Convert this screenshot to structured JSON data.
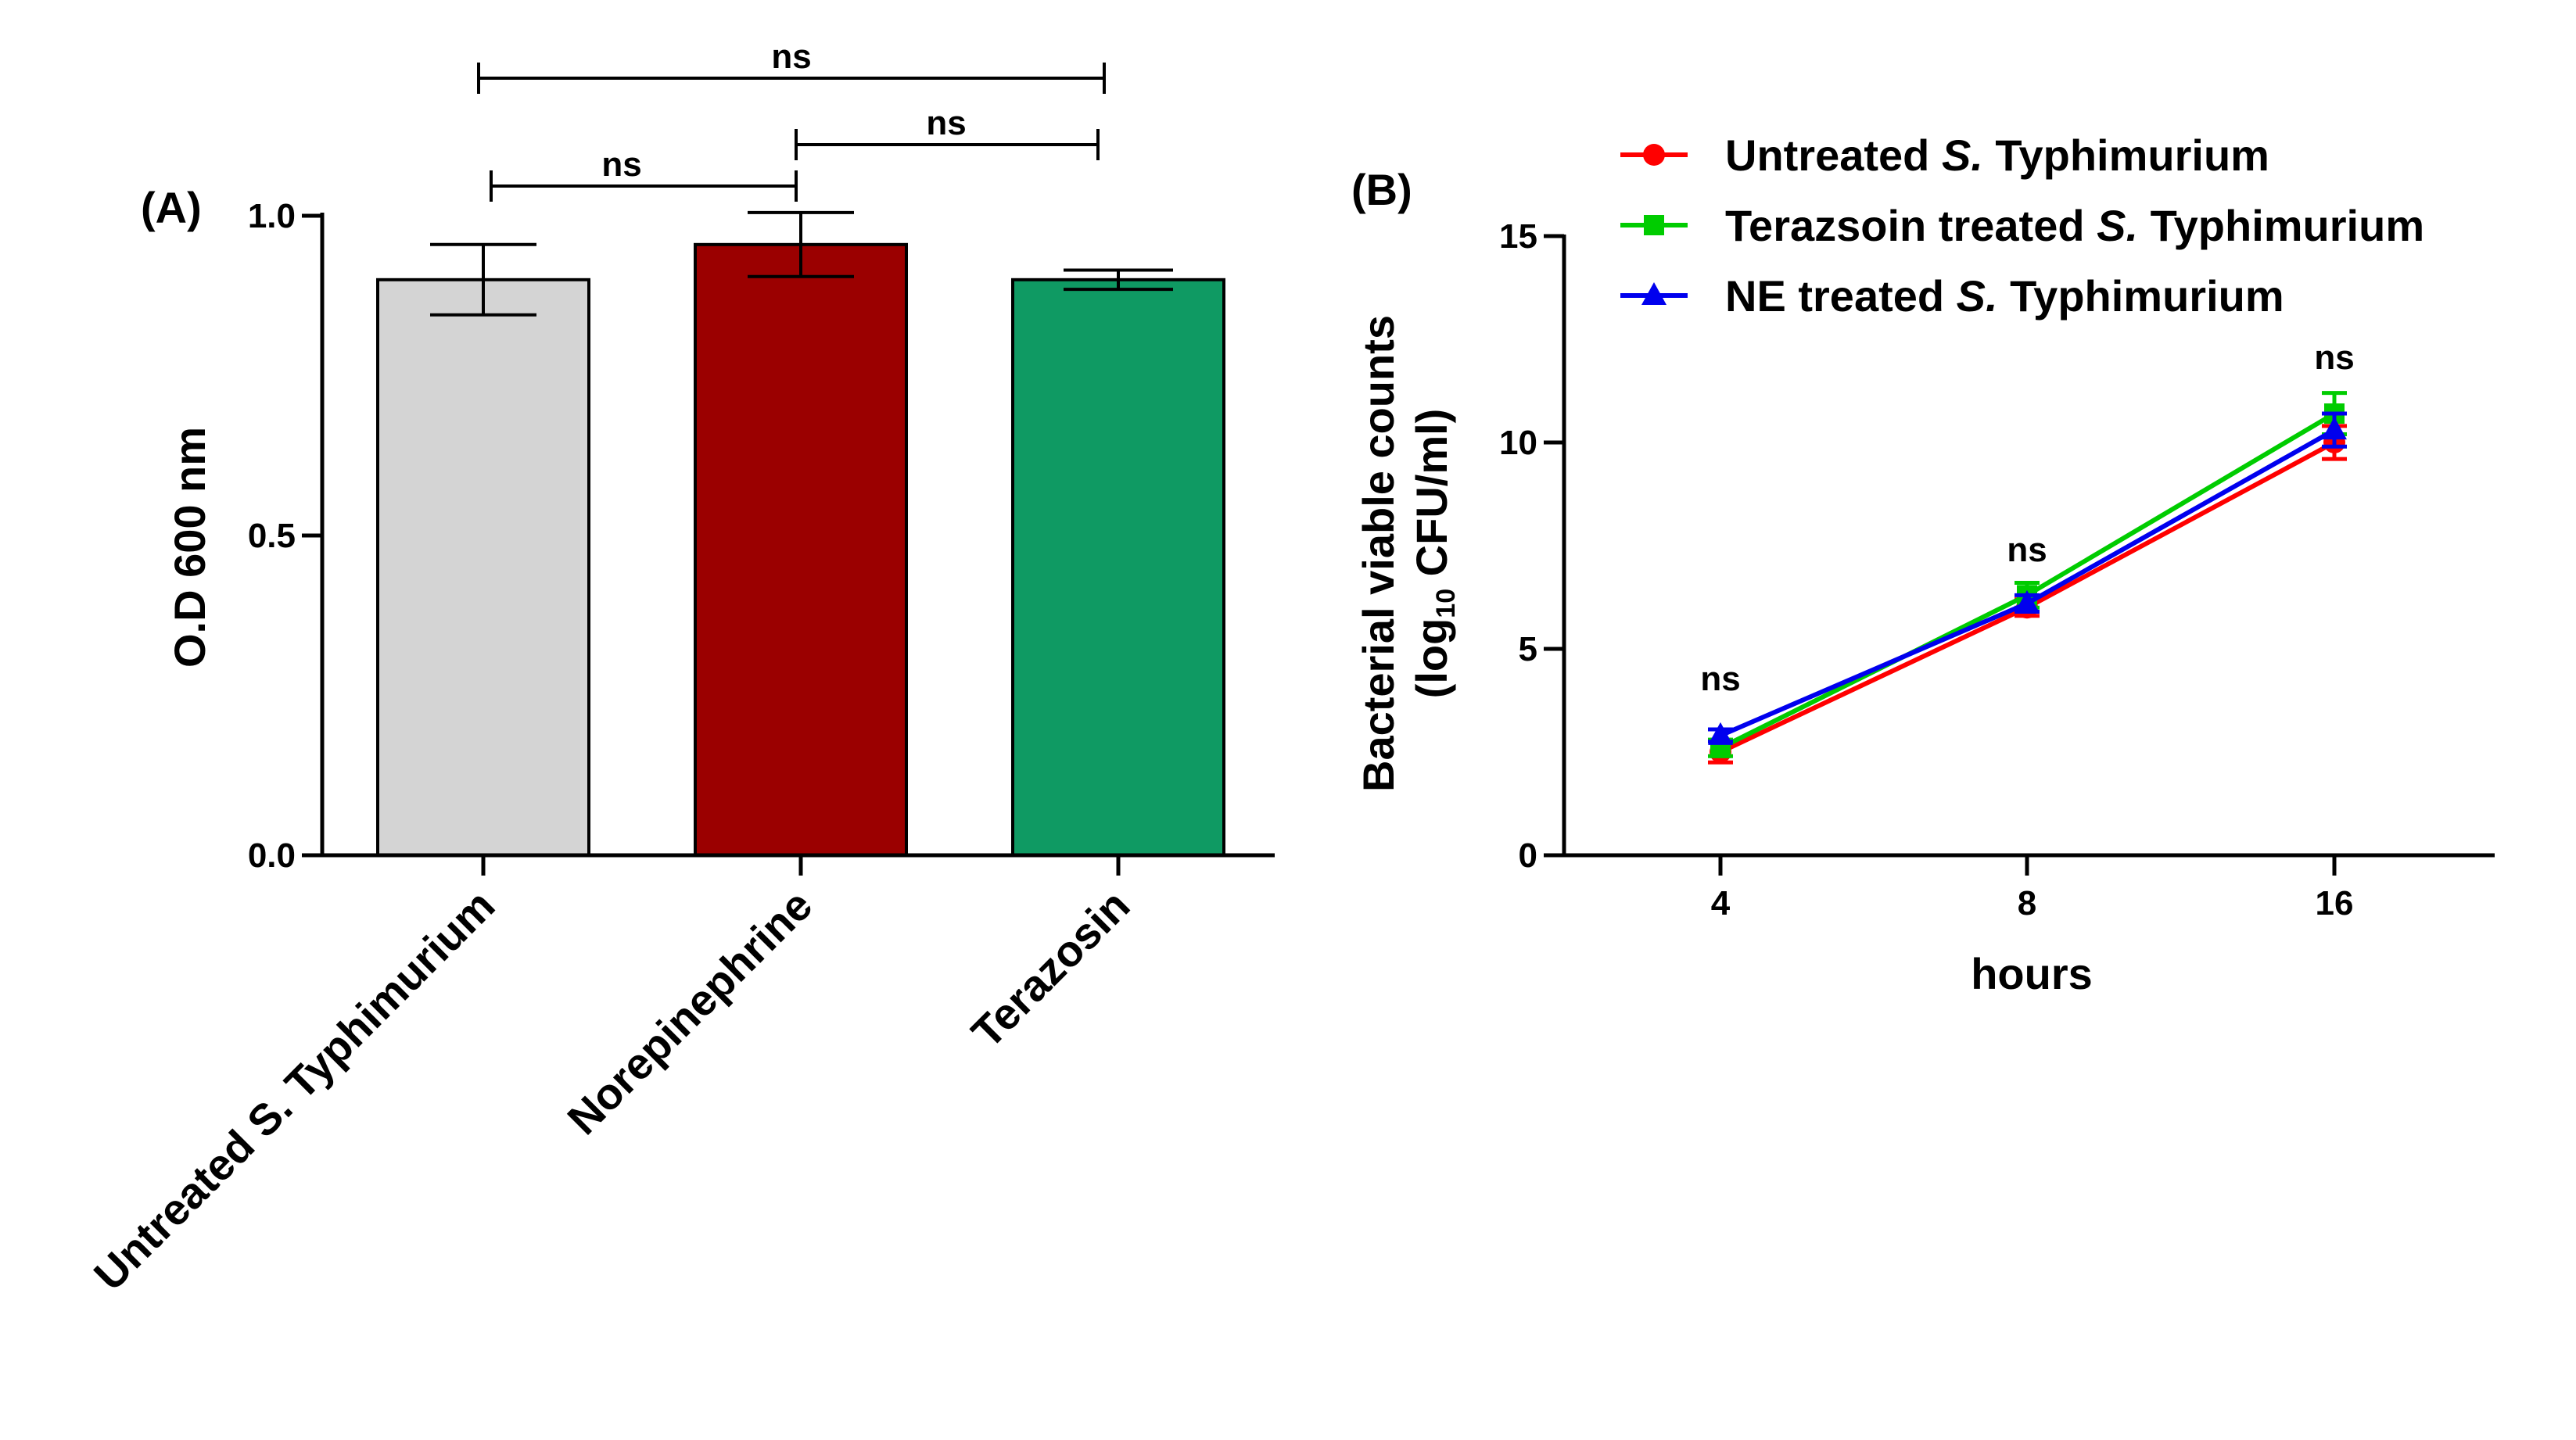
{
  "chart_data": [
    {
      "panel_label": "(A)",
      "type": "bar",
      "categories": [
        "Untreated S. Typhimurium",
        "Norepinephrine",
        "Terazosin"
      ],
      "values": [
        0.9,
        0.955,
        0.9
      ],
      "errors": [
        0.055,
        0.05,
        0.015
      ],
      "colors": [
        "#d4d4d4",
        "#9b0000",
        "#0f9a63"
      ],
      "xlabel": "",
      "ylabel": "O.D 600 nm",
      "ylim": [
        0,
        1.0
      ],
      "yticks": [
        "0.0",
        "0.5",
        "1.0"
      ],
      "comparisons": [
        {
          "from": 0,
          "to": 1,
          "label": "ns"
        },
        {
          "from": 1,
          "to": 2,
          "label": "ns"
        },
        {
          "from": 0,
          "to": 2,
          "label": "ns"
        }
      ]
    },
    {
      "panel_label": "(B)",
      "type": "line",
      "x": [
        "4",
        "8",
        "16"
      ],
      "series": [
        {
          "name_prefix": "Untreated ",
          "name_italic": "S.",
          "name_suffix": " Typhimurium",
          "color": "#ff0000",
          "marker": "circle",
          "values": [
            2.5,
            6.0,
            10.0
          ],
          "errors": [
            0.25,
            0.2,
            0.4
          ]
        },
        {
          "name_prefix": "Terazsoin treated ",
          "name_italic": "S.",
          "name_suffix": " Typhimurium",
          "color": "#00cc00",
          "marker": "square",
          "values": [
            2.6,
            6.3,
            10.7
          ],
          "errors": [
            0.2,
            0.3,
            0.5
          ]
        },
        {
          "name_prefix": "NE treated ",
          "name_italic": "S.",
          "name_suffix": " Typhimurium",
          "color": "#0000ee",
          "marker": "triangle",
          "values": [
            2.9,
            6.1,
            10.3
          ],
          "errors": [
            0.15,
            0.2,
            0.4
          ]
        }
      ],
      "annotations": [
        "ns",
        "ns",
        "ns"
      ],
      "xlabel": "hours",
      "ylabel_line1": "Bacterial viable counts",
      "ylabel_line2_pre": "(log",
      "ylabel_line2_sub": "10",
      "ylabel_line2_post": " CFU/ml)",
      "ylim": [
        0,
        15
      ],
      "yticks": [
        "0",
        "5",
        "10",
        "15"
      ]
    }
  ]
}
